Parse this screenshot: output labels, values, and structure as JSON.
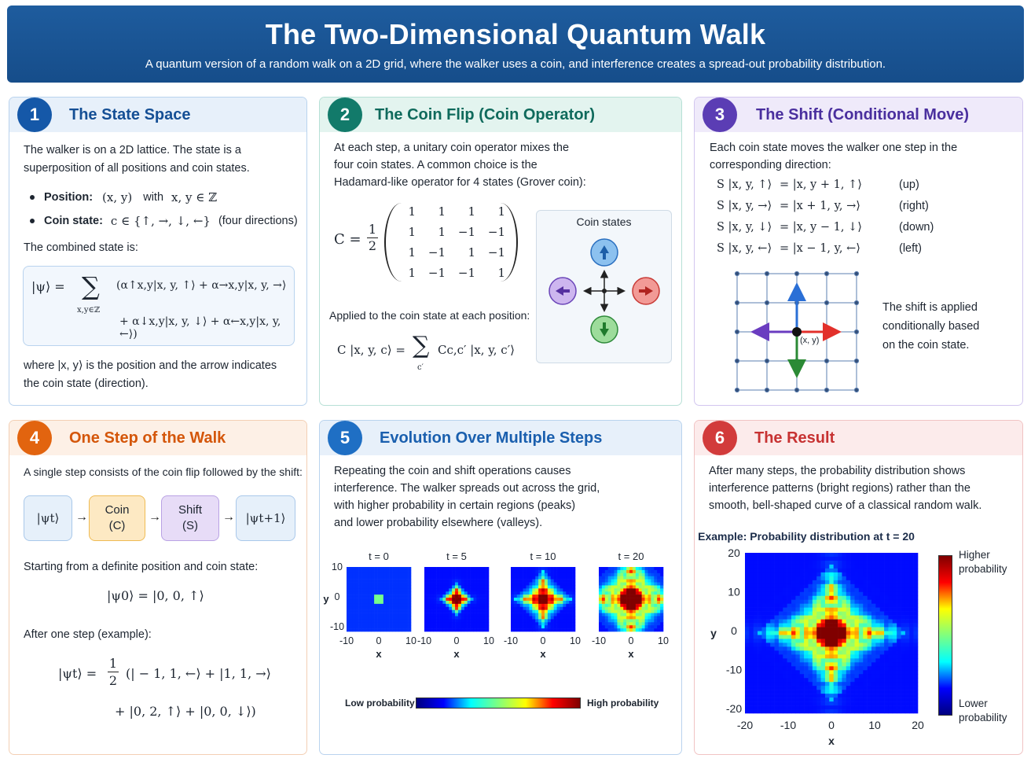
{
  "header": {
    "title": "The Two-Dimensional Quantum Walk",
    "subtitle": "A quantum version of a random walk on a 2D grid, where the walker uses a coin, and interference creates a spread-out probability distribution."
  },
  "colors": {
    "banner": "#1a5596",
    "p1": "#1558a8",
    "p2": "#127a6a",
    "p3": "#5b3db4",
    "p4": "#e2640f",
    "p5": "#1f6fc4",
    "p6": "#d23b3b"
  },
  "p1": {
    "num": "1",
    "title": "The State Space",
    "intro": [
      "The walker is on a 2D lattice. The state is a",
      "superposition of all positions and coin states."
    ],
    "pos_label": "Position:",
    "pos_math": "(x, y)",
    "pos_with": "with",
    "pos_set": "x, y ∈ ℤ",
    "coin_label": "Coin state:",
    "coin_math": "c ∈ {↑, →, ↓, ←}",
    "coin_note": "(four directions)",
    "combined": "The combined state is:",
    "eq_lhs": "|ψ⟩ =",
    "eq_sum": "∑",
    "eq_sub": "x,y∈ℤ",
    "eq_line1": "(α↑x,y|x, y, ↑⟩ + α→x,y|x, y, →⟩",
    "eq_line2": "+ α↓x,y|x, y, ↓⟩ + α←x,y|x, y, ←⟩)",
    "where": [
      "where |x, y⟩  is the position and the arrow indicates",
      "the coin state (direction)."
    ]
  },
  "p2": {
    "num": "2",
    "title": "The Coin Flip (Coin Operator)",
    "intro": [
      "At each step, a unitary coin operator mixes the",
      "four coin states. A common choice is the",
      "Hadamard-like operator for 4 states (Grover coin):"
    ],
    "matrix_lhs": "C =",
    "frac_n": "1",
    "frac_d": "2",
    "matrix": [
      [
        "1",
        "1",
        "1",
        "1"
      ],
      [
        "1",
        "1",
        "−1",
        "−1"
      ],
      [
        "1",
        "−1",
        "1",
        "−1"
      ],
      [
        "1",
        "−1",
        "−1",
        "1"
      ]
    ],
    "coin_states_label": "Coin states",
    "applied": "Applied to the coin state at each position:",
    "apply_lhs": "C |x, y, c⟩ =",
    "apply_sum": "∑",
    "apply_sub": "c′",
    "apply_rhs": "Cc,c′ |x, y, c′⟩"
  },
  "p3": {
    "num": "3",
    "title": "The Shift (Conditional Move)",
    "intro": [
      "Each coin state moves the walker one step in the",
      "corresponding direction:"
    ],
    "rules": [
      {
        "lhs": "S |x, y, ↑⟩",
        "rhs": "= |x, y + 1, ↑⟩",
        "dir": "(up)"
      },
      {
        "lhs": "S |x, y, →⟩",
        "rhs": "= |x + 1, y, →⟩",
        "dir": "(right)"
      },
      {
        "lhs": "S |x, y, ↓⟩",
        "rhs": "= |x, y − 1, ↓⟩",
        "dir": "(down)"
      },
      {
        "lhs": "S |x, y, ←⟩",
        "rhs": "= |x − 1, y, ←⟩",
        "dir": "(left)"
      }
    ],
    "grid_label": "(x, y)",
    "note": [
      "The shift is applied",
      "conditionally based",
      "on the coin state."
    ]
  },
  "p4": {
    "num": "4",
    "title": "One Step of the Walk",
    "intro": "A single step consists of the coin flip followed by the shift:",
    "flow": {
      "psi_t": "|ψt⟩",
      "coin": "Coin",
      "coin_sub": "(C)",
      "shift": "Shift",
      "shift_sub": "(S)",
      "psi_t1": "|ψt+1⟩"
    },
    "start": "Starting from a definite position and coin state:",
    "psi0": "|ψ0⟩  =  |0, 0, ↑⟩",
    "after": "After one step (example):",
    "eq_lhs": "|ψt⟩ =",
    "eq_n": "1",
    "eq_d": "2",
    "eq_l1": "(| − 1, 1, ←⟩ + |1, 1, →⟩",
    "eq_l2": "+ |0, 2, ↑⟩ + |0, 0, ↓⟩)"
  },
  "p5": {
    "num": "5",
    "title": "Evolution Over Multiple Steps",
    "intro": [
      "Repeating the coin and shift operations causes",
      "interference. The walker spreads out across the grid,",
      "with higher probability in certain regions (peaks)",
      "and lower probability elsewhere (valleys)."
    ],
    "low": "Low probability",
    "high": "High probability"
  },
  "p6": {
    "num": "6",
    "title": "The Result",
    "intro": [
      "After many steps, the probability distribution shows",
      "interference patterns (bright regions) rather than the",
      "smooth, bell-shaped curve of a classical random walk."
    ],
    "cb_high": [
      "Higher",
      "probability"
    ],
    "cb_low": [
      "Lower",
      "probability"
    ]
  },
  "chart_data": [
    {
      "type": "heatmap",
      "title": "t = 0",
      "xlabel": "x",
      "ylabel": "y",
      "xlim": [
        -10,
        10
      ],
      "ylim": [
        -10,
        10
      ],
      "xticks": [
        "-10",
        "0",
        "10"
      ],
      "yticks": [
        "10",
        "0",
        "-10"
      ],
      "t": 0
    },
    {
      "type": "heatmap",
      "title": "t = 5",
      "xlabel": "x",
      "xlim": [
        -10,
        10
      ],
      "ylim": [
        -10,
        10
      ],
      "xticks": [
        "-10",
        "0",
        "10"
      ],
      "t": 5
    },
    {
      "type": "heatmap",
      "title": "t = 10",
      "xlabel": "x",
      "xlim": [
        -10,
        10
      ],
      "ylim": [
        -10,
        10
      ],
      "xticks": [
        "-10",
        "0",
        "10"
      ],
      "t": 10
    },
    {
      "type": "heatmap",
      "title": "t = 20",
      "xlabel": "x",
      "xlim": [
        -10,
        10
      ],
      "ylim": [
        -10,
        10
      ],
      "xticks": [
        "-10",
        "0",
        "10"
      ],
      "t": 20
    },
    {
      "type": "heatmap",
      "title": "Example: Probability distribution at t = 20",
      "xlabel": "x",
      "ylabel": "y",
      "xlim": [
        -20,
        20
      ],
      "ylim": [
        -20,
        20
      ],
      "xticks": [
        "-20",
        "-10",
        "0",
        "10",
        "20"
      ],
      "yticks": [
        "20",
        "10",
        "0",
        "-10",
        "-20"
      ],
      "t": 20
    }
  ]
}
